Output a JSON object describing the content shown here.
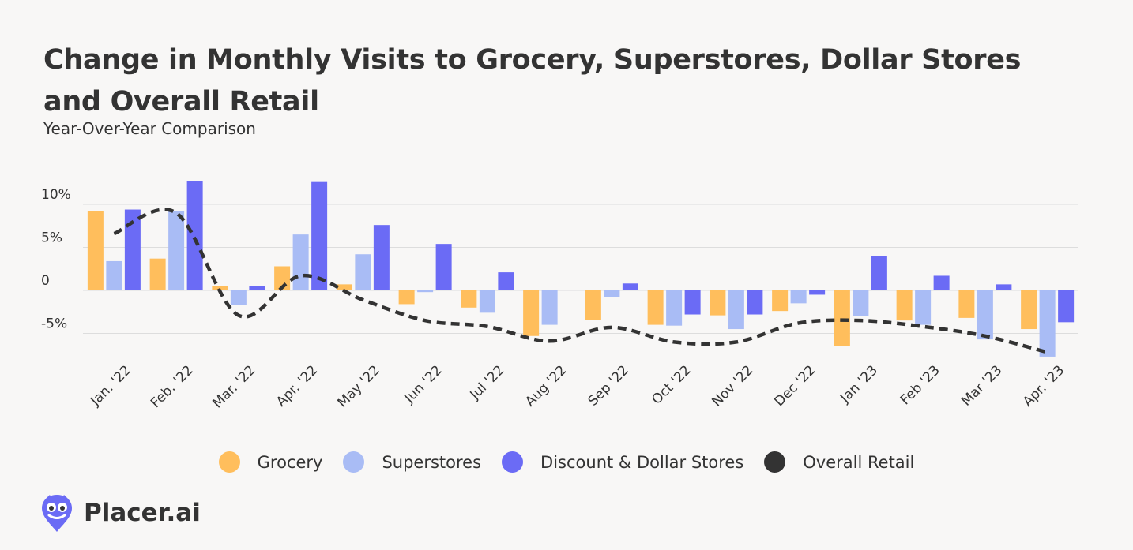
{
  "title_line1": "Change in Monthly Visits to Grocery, Superstores, Dollar Stores",
  "title_line2": "and Overall Retail",
  "subtitle": "Year-Over-Year Comparison",
  "brand": {
    "name": "Placer.ai",
    "logo_icon": "owl-location-pin-icon",
    "logo_color": "#6b6bf5"
  },
  "colors": {
    "grocery": "#ffbe5c",
    "superstores": "#a9bcf5",
    "discount": "#6b6bf5",
    "overall": "#333333",
    "grid": "#dddddd",
    "background": "#f8f7f6"
  },
  "chart_data": {
    "type": "bar",
    "title": "Change in Monthly Visits to Grocery, Superstores, Dollar Stores and Overall Retail",
    "subtitle": "Year-Over-Year Comparison",
    "xlabel": "",
    "ylabel": "",
    "ylim": [
      -10,
      15
    ],
    "yticks": [
      {
        "value": 10,
        "label": "10%"
      },
      {
        "value": 5,
        "label": "5%"
      },
      {
        "value": 0,
        "label": "0"
      },
      {
        "value": -5,
        "label": "-5%"
      }
    ],
    "grid": true,
    "legend_position": "bottom",
    "categories": [
      "Jan. '22",
      "Feb. '22",
      "Mar. '22",
      "Apr. '22",
      "May '22",
      "Jun '22",
      "Jul '22",
      "Aug '22",
      "Sep '22",
      "Oct '22",
      "Nov '22",
      "Dec '22",
      "Jan '23",
      "Feb '23",
      "Mar '23",
      "Apr. '23"
    ],
    "series": [
      {
        "name": "Grocery",
        "type": "bar",
        "color_key": "grocery",
        "values": [
          9.2,
          3.7,
          0.5,
          2.8,
          0.7,
          -1.6,
          -2.0,
          -5.3,
          -3.4,
          -4.0,
          -2.9,
          -2.4,
          -6.5,
          -3.5,
          -3.2,
          -4.5
        ]
      },
      {
        "name": "Superstores",
        "type": "bar",
        "color_key": "superstores",
        "values": [
          3.4,
          9.2,
          -1.7,
          6.5,
          4.2,
          -0.2,
          -2.6,
          -4.0,
          -0.8,
          -4.1,
          -4.5,
          -1.5,
          -3.0,
          -4.0,
          -5.7,
          -7.7
        ]
      },
      {
        "name": "Discount & Dollar Stores",
        "type": "bar",
        "color_key": "discount",
        "values": [
          9.4,
          12.7,
          0.5,
          12.6,
          7.6,
          5.4,
          2.1,
          0.0,
          0.8,
          -2.8,
          -2.8,
          -0.5,
          4.0,
          1.7,
          0.7,
          -3.7
        ]
      },
      {
        "name": "Overall Retail",
        "type": "line",
        "style": "dashed",
        "color_key": "overall",
        "values": [
          6.6,
          9.0,
          -2.9,
          1.7,
          -1.1,
          -3.5,
          -4.2,
          -5.9,
          -4.3,
          -6.0,
          -6.0,
          -3.8,
          -3.5,
          -4.2,
          -5.3,
          -7.2
        ]
      }
    ]
  }
}
